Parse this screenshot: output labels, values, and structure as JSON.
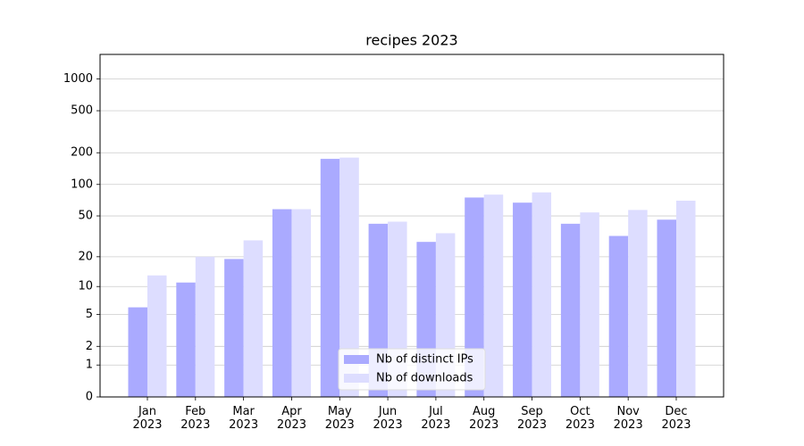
{
  "chart_data": {
    "type": "bar",
    "title": "recipes 2023",
    "categories": [
      "Jan\n2023",
      "Feb\n2023",
      "Mar\n2023",
      "Apr\n2023",
      "May\n2023",
      "Jun\n2023",
      "Jul\n2023",
      "Aug\n2023",
      "Sep\n2023",
      "Oct\n2023",
      "Nov\n2023",
      "Dec\n2023"
    ],
    "series": [
      {
        "name": "Nb of distinct IPs",
        "color": "#aaaaff",
        "values": [
          6,
          11,
          19,
          58,
          175,
          42,
          28,
          75,
          67,
          42,
          32,
          46
        ]
      },
      {
        "name": "Nb of downloads",
        "color": "#ddddff",
        "values": [
          13,
          20,
          29,
          58,
          180,
          44,
          34,
          80,
          84,
          54,
          57,
          70
        ]
      }
    ],
    "yscale": "log1p",
    "ylim": [
      0,
      1700
    ],
    "yticks": [
      0,
      1,
      2,
      5,
      10,
      20,
      50,
      100,
      200,
      500,
      1000
    ],
    "grid": true,
    "legend": "lower center"
  }
}
